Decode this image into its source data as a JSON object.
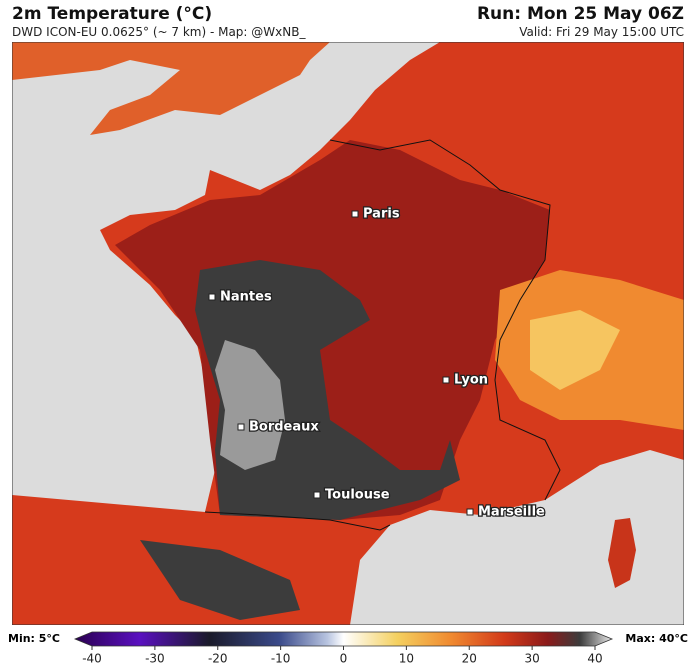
{
  "header": {
    "title": "2m Temperature (°C)",
    "subtitle": "DWD ICON-EU 0.0625° (~ 7 km) - Map: @WxNB_",
    "run": "Run: Mon 25 May 06Z",
    "valid": "Valid: Fri 29 May 15:00 UTC"
  },
  "cities": [
    {
      "name": "Paris"
    },
    {
      "name": "Nantes"
    },
    {
      "name": "Lyon"
    },
    {
      "name": "Bordeaux"
    },
    {
      "name": "Toulouse"
    },
    {
      "name": "Marseille"
    }
  ],
  "colorbar": {
    "min_label": "Min: 5°C",
    "max_label": "Max: 40°C",
    "lim": [
      -40,
      40
    ],
    "ticks": [
      -40,
      -30,
      -20,
      -10,
      0,
      10,
      20,
      30,
      40
    ]
  }
}
